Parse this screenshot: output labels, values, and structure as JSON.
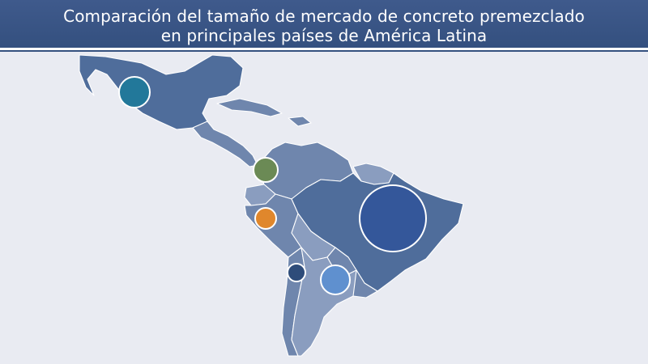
{
  "title": {
    "line1": "Comparación del tamaño de mercado de concreto premezclado",
    "line2": "en principales países de América Latina"
  },
  "colors": {
    "header": "#3f5a8c",
    "background": "#e9ebf2",
    "land": "#4f6d9b",
    "mexico_bubble": "#22789a",
    "colombia_bubble": "#6b8a55",
    "peru_bubble": "#e0872c",
    "chile_bubble": "#2e4c7a",
    "argentina_bubble": "#5f90cf",
    "brazil_bubble": "#34579a"
  },
  "markers": [
    {
      "country": "mexico",
      "relative_size": 0.38
    },
    {
      "country": "colombia",
      "relative_size": 0.3
    },
    {
      "country": "peru",
      "relative_size": 0.25
    },
    {
      "country": "chile",
      "relative_size": 0.22
    },
    {
      "country": "argentina",
      "relative_size": 0.35
    },
    {
      "country": "brazil",
      "relative_size": 1.0
    }
  ]
}
